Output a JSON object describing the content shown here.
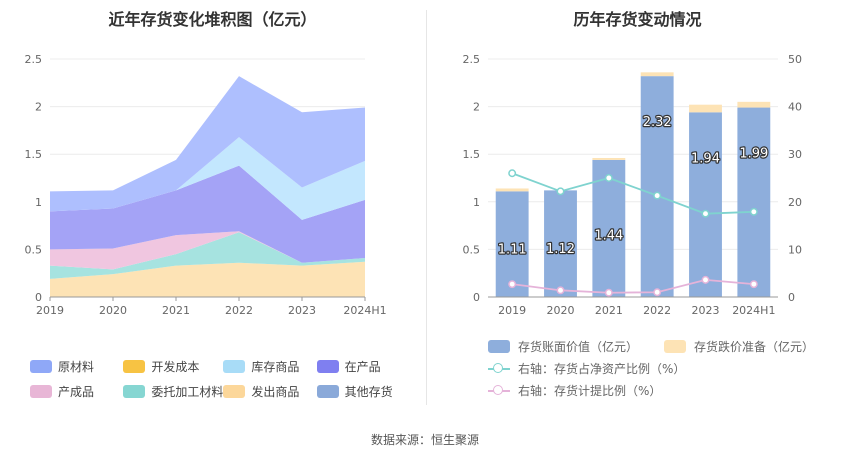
{
  "left": {
    "title": "近年存货变化堆积图（亿元）",
    "chart_data": {
      "type": "area",
      "stacked": true,
      "x": [
        "2019",
        "2020",
        "2021",
        "2022",
        "2023",
        "2024H1"
      ],
      "ylim": [
        0,
        2.5
      ],
      "yticks": [
        "0",
        "0.5",
        "1",
        "1.5",
        "2",
        "2.5"
      ],
      "series": [
        {
          "name": "发出商品",
          "color": "#fde3b5",
          "values": [
            0.19,
            0.24,
            0.33,
            0.36,
            0.33,
            0.37
          ]
        },
        {
          "name": "委托加工材料",
          "color": "#a6e3e0",
          "values": [
            0.14,
            0.05,
            0.12,
            0.32,
            0.03,
            0.04
          ]
        },
        {
          "name": "产成品",
          "color": "#f0c6e0",
          "values": [
            0.17,
            0.22,
            0.2,
            0.01,
            0.0,
            0.0
          ]
        },
        {
          "name": "在产品",
          "color": "#a4a3f6",
          "values": [
            0.4,
            0.42,
            0.47,
            0.69,
            0.45,
            0.61
          ]
        },
        {
          "name": "库存商品",
          "color": "#c3e7fe",
          "values": [
            0.0,
            0.0,
            0.0,
            0.3,
            0.34,
            0.41
          ]
        },
        {
          "name": "原材料",
          "color": "#aebffe",
          "values": [
            0.21,
            0.19,
            0.32,
            0.64,
            0.79,
            0.56
          ]
        }
      ]
    },
    "legend": [
      {
        "label": "原材料",
        "color": "#8fa8f7"
      },
      {
        "label": "开发成本",
        "color": "#f7c343"
      },
      {
        "label": "库存商品",
        "color": "#a8dcf7"
      },
      {
        "label": "在产品",
        "color": "#7f7ff0"
      },
      {
        "label": "产成品",
        "color": "#e8b6d6"
      },
      {
        "label": "委托加工材料",
        "color": "#86d6d2"
      },
      {
        "label": "发出商品",
        "color": "#fcd79a"
      },
      {
        "label": "其他存货",
        "color": "#8aa9d9"
      }
    ]
  },
  "right": {
    "title": "历年存货变动情况",
    "chart_data": {
      "type": "bar",
      "x": [
        "2019",
        "2020",
        "2021",
        "2022",
        "2023",
        "2024H1"
      ],
      "ylim_left": [
        0,
        2.5
      ],
      "yticks_left": [
        "0",
        "0.5",
        "1",
        "1.5",
        "2",
        "2.5"
      ],
      "ylim_right": [
        0,
        50
      ],
      "yticks_right": [
        "0",
        "10",
        "20",
        "30",
        "40",
        "50"
      ],
      "bars": {
        "name": "存货账面价值（亿元）",
        "color": "#8eaedc",
        "values": [
          1.11,
          1.12,
          1.44,
          2.32,
          1.94,
          1.99
        ],
        "labels": [
          "1.11",
          "1.12",
          "1.44",
          "2.32",
          "1.94",
          "1.99"
        ]
      },
      "bars_top": {
        "name": "存货跌价准备（亿元）",
        "color": "#fde3b5",
        "values": [
          0.03,
          0.0,
          0.02,
          0.04,
          0.08,
          0.06
        ]
      },
      "lines": [
        {
          "name": "右轴：存货占净资产比例（%）",
          "color": "#7fd3cf",
          "values": [
            26,
            22.2,
            25,
            21.3,
            17.5,
            17.9
          ]
        },
        {
          "name": "右轴：存货计提比例（%）",
          "color": "#e5b3d9",
          "values": [
            2.7,
            1.4,
            0.9,
            1.0,
            3.6,
            2.7
          ]
        }
      ]
    }
  },
  "source": "数据来源：恒生聚源"
}
